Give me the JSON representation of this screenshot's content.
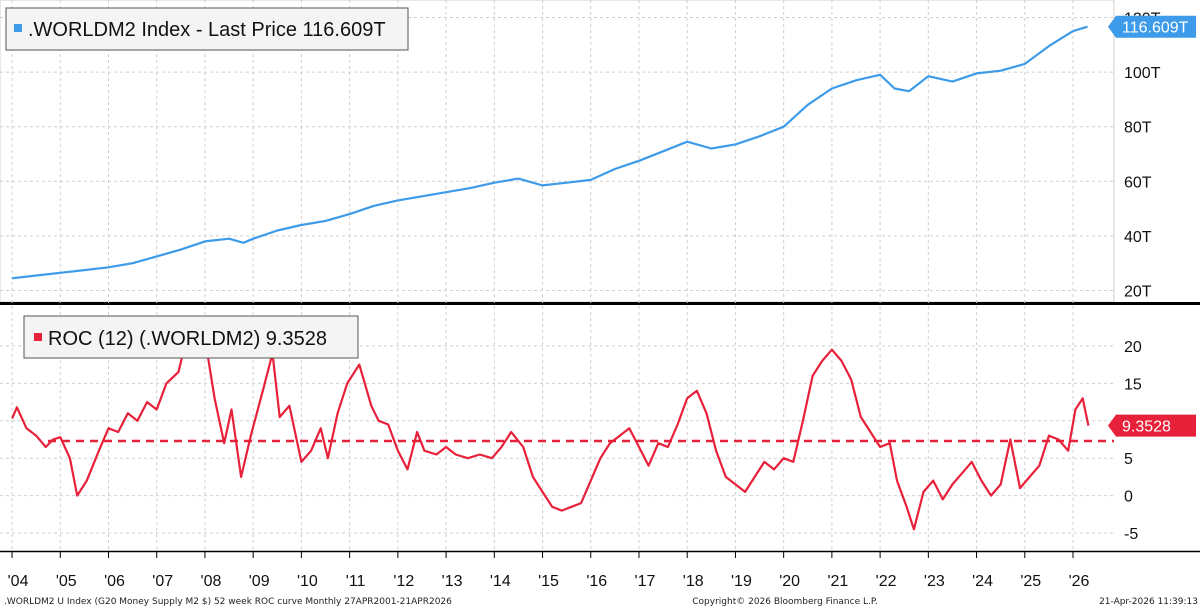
{
  "chart_data": [
    {
      "type": "line",
      "legend": ".WORLDM2 Index - Last Price 116.609T",
      "last_value_label": "116.609T",
      "color": "#3d9be9",
      "y_unit": "T",
      "ylim": [
        18,
        122
      ],
      "y_ticks": [
        {
          "value": 20,
          "label": "20T"
        },
        {
          "value": 40,
          "label": "40T"
        },
        {
          "value": 60,
          "label": "60T"
        },
        {
          "value": 80,
          "label": "80T"
        },
        {
          "value": 100,
          "label": "100T"
        },
        {
          "value": 120,
          "label": "120T"
        }
      ],
      "series": [
        {
          "name": ".WORLDM2 Index",
          "points": [
            [
              2004.0,
              24.5
            ],
            [
              2004.5,
              25.5
            ],
            [
              2005.0,
              26.5
            ],
            [
              2005.5,
              27.5
            ],
            [
              2006.0,
              28.5
            ],
            [
              2006.5,
              30.0
            ],
            [
              2007.0,
              32.5
            ],
            [
              2007.5,
              35.0
            ],
            [
              2008.0,
              38.0
            ],
            [
              2008.5,
              39.0
            ],
            [
              2008.8,
              37.5
            ],
            [
              2009.0,
              39.0
            ],
            [
              2009.5,
              42.0
            ],
            [
              2010.0,
              44.0
            ],
            [
              2010.5,
              45.5
            ],
            [
              2011.0,
              48.0
            ],
            [
              2011.5,
              51.0
            ],
            [
              2012.0,
              53.0
            ],
            [
              2012.5,
              54.5
            ],
            [
              2013.0,
              56.0
            ],
            [
              2013.5,
              57.5
            ],
            [
              2014.0,
              59.5
            ],
            [
              2014.5,
              61.0
            ],
            [
              2015.0,
              58.5
            ],
            [
              2015.5,
              59.5
            ],
            [
              2016.0,
              60.5
            ],
            [
              2016.5,
              64.5
            ],
            [
              2017.0,
              67.5
            ],
            [
              2017.5,
              71.0
            ],
            [
              2018.0,
              74.5
            ],
            [
              2018.5,
              72.0
            ],
            [
              2019.0,
              73.5
            ],
            [
              2019.5,
              76.5
            ],
            [
              2020.0,
              80.0
            ],
            [
              2020.5,
              88.0
            ],
            [
              2021.0,
              94.0
            ],
            [
              2021.5,
              97.0
            ],
            [
              2022.0,
              99.0
            ],
            [
              2022.3,
              94.0
            ],
            [
              2022.6,
              93.0
            ],
            [
              2023.0,
              98.5
            ],
            [
              2023.5,
              96.5
            ],
            [
              2024.0,
              99.5
            ],
            [
              2024.5,
              100.5
            ],
            [
              2025.0,
              103.0
            ],
            [
              2025.5,
              109.5
            ],
            [
              2026.0,
              115.0
            ],
            [
              2026.3,
              116.609
            ]
          ]
        }
      ]
    },
    {
      "type": "line",
      "legend": "ROC (12) (.WORLDM2) 9.3528",
      "last_value_label": "9.3528",
      "color": "#e8213a",
      "ylim": [
        -7,
        24
      ],
      "y_ticks": [
        {
          "value": -5,
          "label": "-5"
        },
        {
          "value": 0,
          "label": "0"
        },
        {
          "value": 5,
          "label": "5"
        },
        {
          "value": 10,
          "label": "10"
        },
        {
          "value": 15,
          "label": "15"
        },
        {
          "value": 20,
          "label": "20"
        }
      ],
      "reference_line": 7.3,
      "series": [
        {
          "name": "ROC (12)",
          "points": [
            [
              2004.0,
              10.3
            ],
            [
              2004.1,
              11.8
            ],
            [
              2004.3,
              9.0
            ],
            [
              2004.5,
              8.0
            ],
            [
              2004.7,
              6.5
            ],
            [
              2004.85,
              7.5
            ],
            [
              2005.0,
              7.8
            ],
            [
              2005.2,
              5.0
            ],
            [
              2005.35,
              0.0
            ],
            [
              2005.55,
              2.0
            ],
            [
              2005.8,
              6.0
            ],
            [
              2006.0,
              9.0
            ],
            [
              2006.2,
              8.5
            ],
            [
              2006.4,
              11.0
            ],
            [
              2006.6,
              10.0
            ],
            [
              2006.8,
              12.5
            ],
            [
              2007.0,
              11.5
            ],
            [
              2007.2,
              15.0
            ],
            [
              2007.45,
              16.5
            ],
            [
              2007.6,
              20.5
            ],
            [
              2007.8,
              22.0
            ],
            [
              2008.0,
              21.0
            ],
            [
              2008.2,
              13.0
            ],
            [
              2008.4,
              7.0
            ],
            [
              2008.55,
              11.5
            ],
            [
              2008.75,
              2.5
            ],
            [
              2008.95,
              8.0
            ],
            [
              2009.2,
              14.0
            ],
            [
              2009.4,
              19.0
            ],
            [
              2009.55,
              10.5
            ],
            [
              2009.75,
              12.0
            ],
            [
              2010.0,
              4.5
            ],
            [
              2010.2,
              6.0
            ],
            [
              2010.4,
              9.0
            ],
            [
              2010.55,
              5.0
            ],
            [
              2010.75,
              11.0
            ],
            [
              2010.95,
              15.0
            ],
            [
              2011.2,
              17.5
            ],
            [
              2011.45,
              12.0
            ],
            [
              2011.6,
              10.0
            ],
            [
              2011.8,
              9.5
            ],
            [
              2012.0,
              6.0
            ],
            [
              2012.2,
              3.5
            ],
            [
              2012.4,
              8.5
            ],
            [
              2012.55,
              6.0
            ],
            [
              2012.8,
              5.5
            ],
            [
              2013.0,
              6.5
            ],
            [
              2013.2,
              5.5
            ],
            [
              2013.45,
              5.0
            ],
            [
              2013.7,
              5.5
            ],
            [
              2013.95,
              5.0
            ],
            [
              2014.15,
              6.5
            ],
            [
              2014.35,
              8.5
            ],
            [
              2014.6,
              6.5
            ],
            [
              2014.8,
              2.5
            ],
            [
              2015.0,
              0.5
            ],
            [
              2015.2,
              -1.5
            ],
            [
              2015.4,
              -2.0
            ],
            [
              2015.6,
              -1.5
            ],
            [
              2015.8,
              -1.0
            ],
            [
              2016.0,
              2.0
            ],
            [
              2016.2,
              5.0
            ],
            [
              2016.4,
              7.0
            ],
            [
              2016.6,
              8.0
            ],
            [
              2016.8,
              9.0
            ],
            [
              2017.0,
              6.5
            ],
            [
              2017.2,
              4.0
            ],
            [
              2017.4,
              7.0
            ],
            [
              2017.6,
              6.5
            ],
            [
              2017.8,
              9.5
            ],
            [
              2018.0,
              13.0
            ],
            [
              2018.2,
              14.0
            ],
            [
              2018.4,
              11.0
            ],
            [
              2018.6,
              6.0
            ],
            [
              2018.8,
              2.5
            ],
            [
              2019.0,
              1.5
            ],
            [
              2019.2,
              0.5
            ],
            [
              2019.4,
              2.5
            ],
            [
              2019.6,
              4.5
            ],
            [
              2019.8,
              3.5
            ],
            [
              2020.0,
              5.0
            ],
            [
              2020.2,
              4.5
            ],
            [
              2020.4,
              10.0
            ],
            [
              2020.6,
              16.0
            ],
            [
              2020.8,
              18.0
            ],
            [
              2021.0,
              19.5
            ],
            [
              2021.2,
              18.0
            ],
            [
              2021.4,
              15.5
            ],
            [
              2021.6,
              10.5
            ],
            [
              2021.8,
              8.5
            ],
            [
              2022.0,
              6.5
            ],
            [
              2022.2,
              7.0
            ],
            [
              2022.35,
              2.0
            ],
            [
              2022.55,
              -1.5
            ],
            [
              2022.7,
              -4.5
            ],
            [
              2022.9,
              0.5
            ],
            [
              2023.1,
              2.0
            ],
            [
              2023.3,
              -0.5
            ],
            [
              2023.5,
              1.5
            ],
            [
              2023.7,
              3.0
            ],
            [
              2023.9,
              4.5
            ],
            [
              2024.1,
              2.0
            ],
            [
              2024.3,
              0.0
            ],
            [
              2024.5,
              1.5
            ],
            [
              2024.7,
              7.5
            ],
            [
              2024.9,
              1.0
            ],
            [
              2025.1,
              2.5
            ],
            [
              2025.3,
              4.0
            ],
            [
              2025.5,
              8.0
            ],
            [
              2025.7,
              7.5
            ],
            [
              2025.9,
              6.0
            ],
            [
              2026.05,
              11.5
            ],
            [
              2026.2,
              13.0
            ],
            [
              2026.32,
              9.3528
            ]
          ]
        }
      ]
    }
  ],
  "x_axis": {
    "xlim": [
      2003.75,
      2026.85
    ],
    "ticks": [
      {
        "value": 2004.0,
        "label": "'04"
      },
      {
        "value": 2005.0,
        "label": "'05"
      },
      {
        "value": 2006.0,
        "label": "'06"
      },
      {
        "value": 2007.0,
        "label": "'07"
      },
      {
        "value": 2008.0,
        "label": "'08"
      },
      {
        "value": 2009.0,
        "label": "'09"
      },
      {
        "value": 2010.0,
        "label": "'10"
      },
      {
        "value": 2011.0,
        "label": "'11"
      },
      {
        "value": 2012.0,
        "label": "'12"
      },
      {
        "value": 2013.0,
        "label": "'13"
      },
      {
        "value": 2014.0,
        "label": "'14"
      },
      {
        "value": 2015.0,
        "label": "'15"
      },
      {
        "value": 2016.0,
        "label": "'16"
      },
      {
        "value": 2017.0,
        "label": "'17"
      },
      {
        "value": 2018.0,
        "label": "'18"
      },
      {
        "value": 2019.0,
        "label": "'19"
      },
      {
        "value": 2020.0,
        "label": "'20"
      },
      {
        "value": 2021.0,
        "label": "'21"
      },
      {
        "value": 2022.0,
        "label": "'22"
      },
      {
        "value": 2023.0,
        "label": "'23"
      },
      {
        "value": 2024.0,
        "label": "'24"
      },
      {
        "value": 2025.0,
        "label": "'25"
      },
      {
        "value": 2026.0,
        "label": "'26"
      }
    ]
  },
  "footer": {
    "left": ".WORLDM2 U Index (G20 Money Supply M2 $) 52 week ROC curve Monthly 27APR2001-21APR2026",
    "center": "Copyright© 2026 Bloomberg Finance L.P.",
    "right": "21-Apr-2026 11:39:13"
  }
}
